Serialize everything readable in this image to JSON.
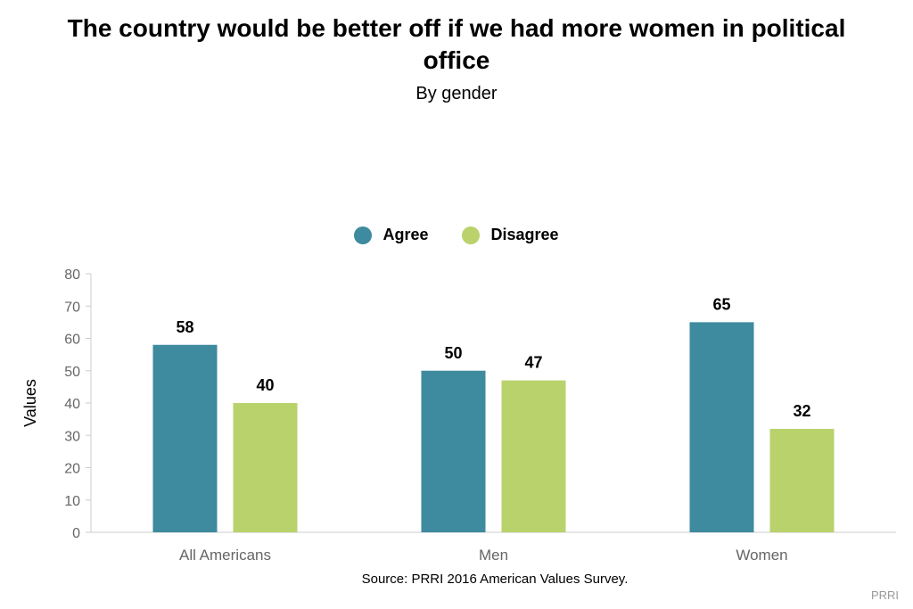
{
  "chart_data": {
    "type": "bar",
    "title": "The country would be better off if we had more women in political office",
    "subtitle": "By gender",
    "ylabel": "Values",
    "categories": [
      "All Americans",
      "Men",
      "Women"
    ],
    "series": [
      {
        "name": "Agree",
        "color": "#3e8a9e",
        "values": [
          58,
          50,
          65
        ]
      },
      {
        "name": "Disagree",
        "color": "#b9d26c",
        "values": [
          40,
          47,
          32
        ]
      }
    ],
    "ylim": [
      0,
      80
    ],
    "yticks": [
      0,
      10,
      20,
      30,
      40,
      50,
      60,
      70,
      80
    ],
    "grid": false,
    "legend": "top-center",
    "source": "Source: PRRI 2016 American Values Survey.",
    "credit": "PRRI"
  }
}
